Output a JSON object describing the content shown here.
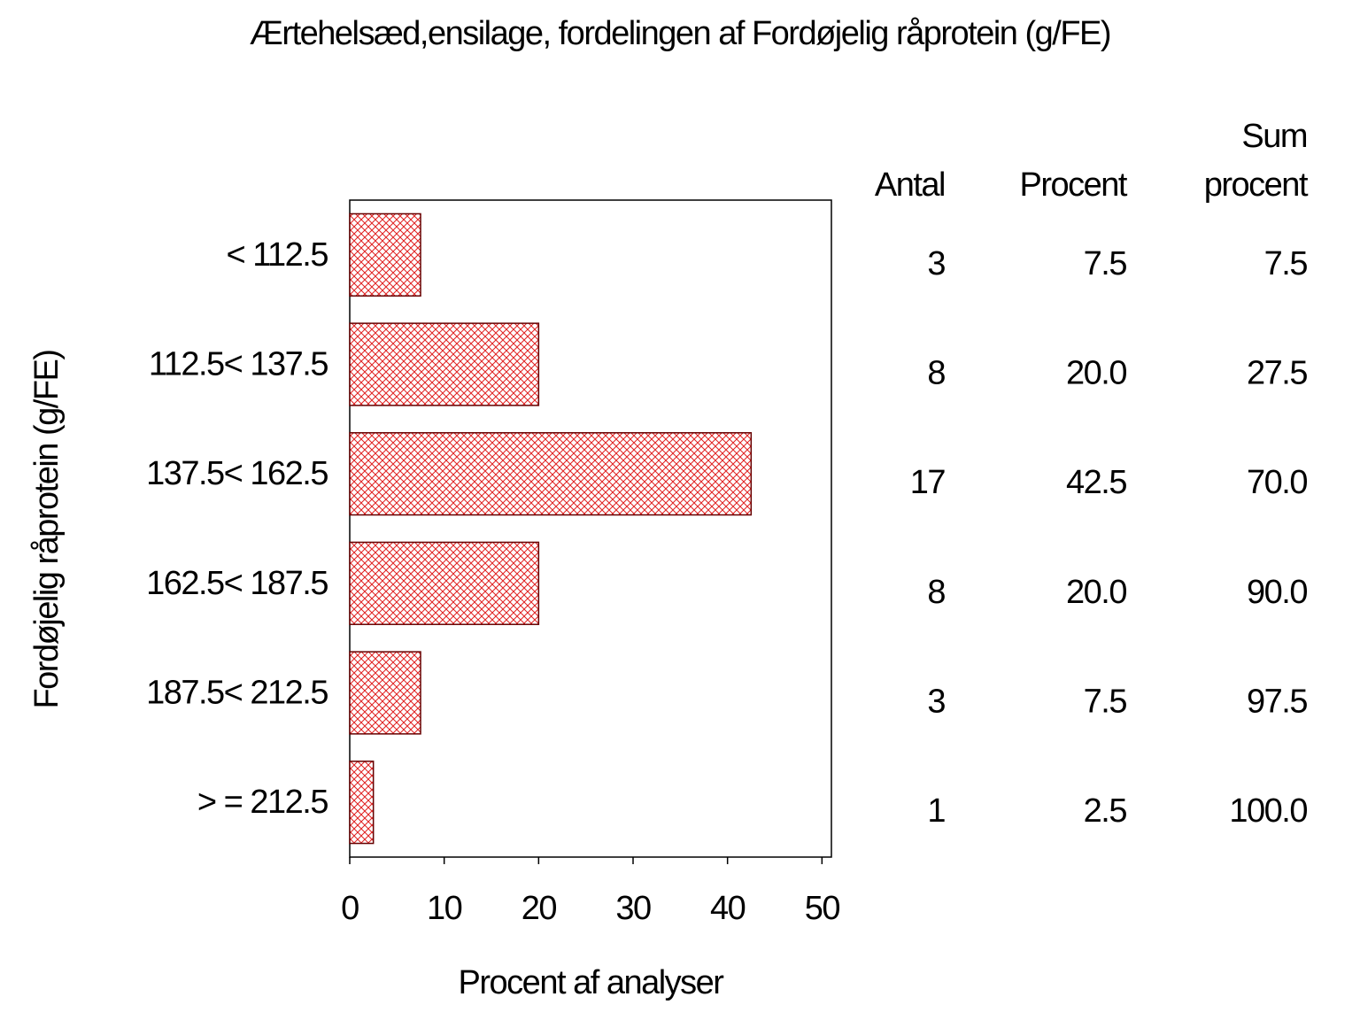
{
  "chart_data": {
    "type": "bar",
    "title": "Ærtehelsæd,ensilage,  fordelingen  af  Fordøjelig  råprotein  (g/FE)",
    "x_label": "Procent  af  analyser",
    "y_label": "Fordøjelig  råprotein  (g/FE)",
    "categories": [
      "< 112.5",
      "112.5< 137.5",
      "137.5< 162.5",
      "162.5< 187.5",
      "187.5< 212.5",
      "> = 212.5"
    ],
    "values": [
      7.5,
      20,
      42.5,
      20,
      7.5,
      2.5
    ],
    "value_labels": [
      "7.5",
      "20.0",
      "42.5",
      "20.0",
      "7.5",
      "2.5"
    ],
    "color": "#e02020",
    "xlim": [
      0,
      51
    ],
    "xticks": [
      0,
      10,
      20,
      30,
      40,
      50
    ],
    "table_headers": [
      [
        "Antal"
      ],
      [
        "Procent"
      ],
      [
        "Sum",
        "procent"
      ]
    ],
    "counts": [
      3,
      8,
      17,
      8,
      3,
      1
    ],
    "cumulative": [
      7.5,
      27.5,
      70,
      90,
      97.5,
      100
    ],
    "cumulative_labels": [
      "7.5",
      "27.5",
      "70.0",
      "90.0",
      "97.5",
      "100.0"
    ]
  }
}
